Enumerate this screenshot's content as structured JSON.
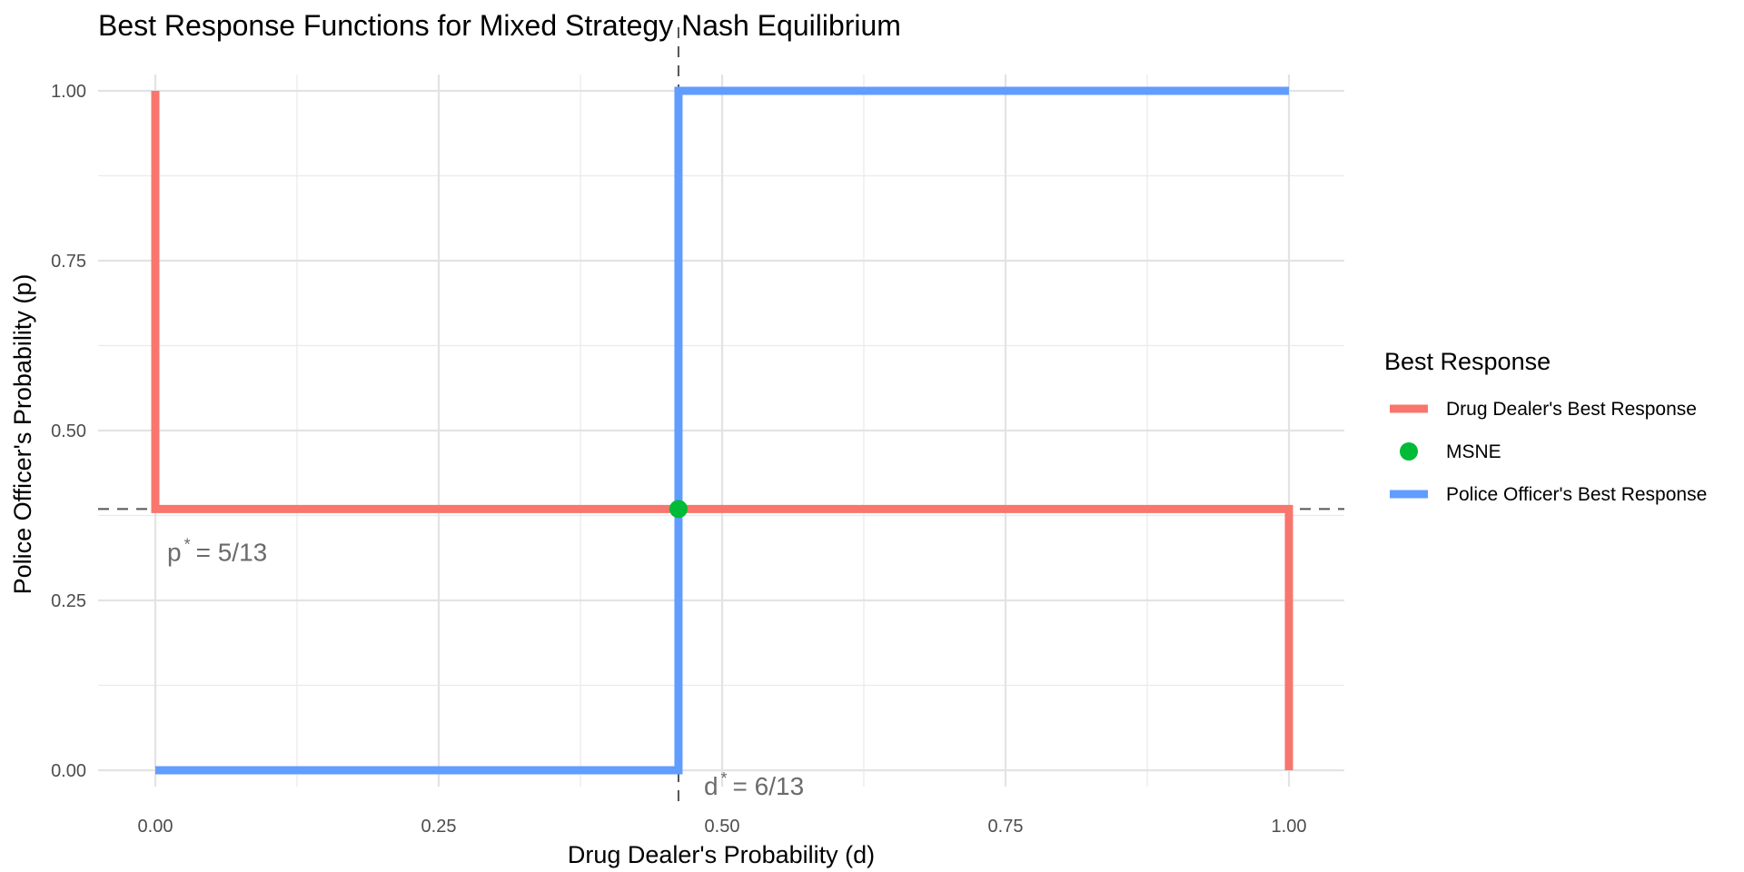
{
  "chart_data": {
    "type": "line",
    "title": "Best Response Functions for Mixed Strategy Nash Equilibrium",
    "xlabel": "Drug Dealer's Probability (d)",
    "ylabel": "Police Officer's Probability (p)",
    "xlim": [
      0,
      1
    ],
    "ylim": [
      0,
      1
    ],
    "x_ticks": [
      0,
      0.25,
      0.5,
      0.75,
      1
    ],
    "x_tick_labels": [
      "0.00",
      "0.25",
      "0.50",
      "0.75",
      "1.00"
    ],
    "y_ticks": [
      0,
      0.25,
      0.5,
      0.75,
      1
    ],
    "y_tick_labels": [
      "0.00",
      "0.25",
      "0.50",
      "0.75",
      "1.00"
    ],
    "grid": true,
    "legend": {
      "title": "Best Response",
      "position": "right",
      "entries": [
        {
          "label": "Drug Dealer's Best Response",
          "color": "#F8766D",
          "kind": "line"
        },
        {
          "label": "MSNE",
          "color": "#00BA38",
          "kind": "point"
        },
        {
          "label": "Police Officer's Best Response",
          "color": "#619CFF",
          "kind": "line"
        }
      ]
    },
    "series": [
      {
        "name": "Drug Dealer's Best Response",
        "color": "#F8766D",
        "points": [
          [
            0,
            1
          ],
          [
            0,
            0.3846
          ],
          [
            1,
            0.3846
          ],
          [
            1,
            0
          ]
        ]
      },
      {
        "name": "Police Officer's Best Response",
        "color": "#619CFF",
        "points": [
          [
            0,
            0
          ],
          [
            0.4615,
            0
          ],
          [
            0.4615,
            1
          ],
          [
            1,
            1
          ]
        ]
      }
    ],
    "equilibrium": {
      "name": "MSNE",
      "d": 0.4615,
      "p": 0.3846,
      "color": "#00BA38"
    },
    "reference_lines": [
      {
        "orientation": "vertical",
        "value": 0.4615
      },
      {
        "orientation": "horizontal",
        "value": 0.3846
      }
    ],
    "annotations": [
      {
        "text_main": "p",
        "text_sup": "*",
        "text_eq": "= 5/13",
        "at": "p"
      },
      {
        "text_main": "d",
        "text_sup": "*",
        "text_eq": "= 6/13",
        "at": "d"
      }
    ]
  }
}
